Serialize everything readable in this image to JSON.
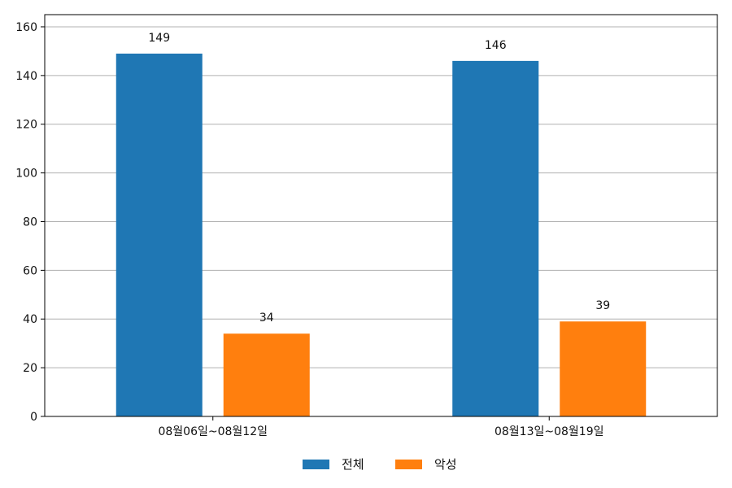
{
  "chart_data": {
    "type": "bar",
    "categories": [
      "08월06일~08월12일",
      "08월13일~08월19일"
    ],
    "series": [
      {
        "name": "전체",
        "values": [
          149,
          146
        ],
        "color": "#1f77b4"
      },
      {
        "name": "악성",
        "values": [
          34,
          39
        ],
        "color": "#ff7f0e"
      }
    ],
    "ylim": [
      0,
      165
    ],
    "yticks": [
      0,
      20,
      40,
      60,
      80,
      100,
      120,
      140,
      160
    ],
    "grid": "horizontal",
    "legend_position": "bottom-center",
    "data_labels": true
  }
}
